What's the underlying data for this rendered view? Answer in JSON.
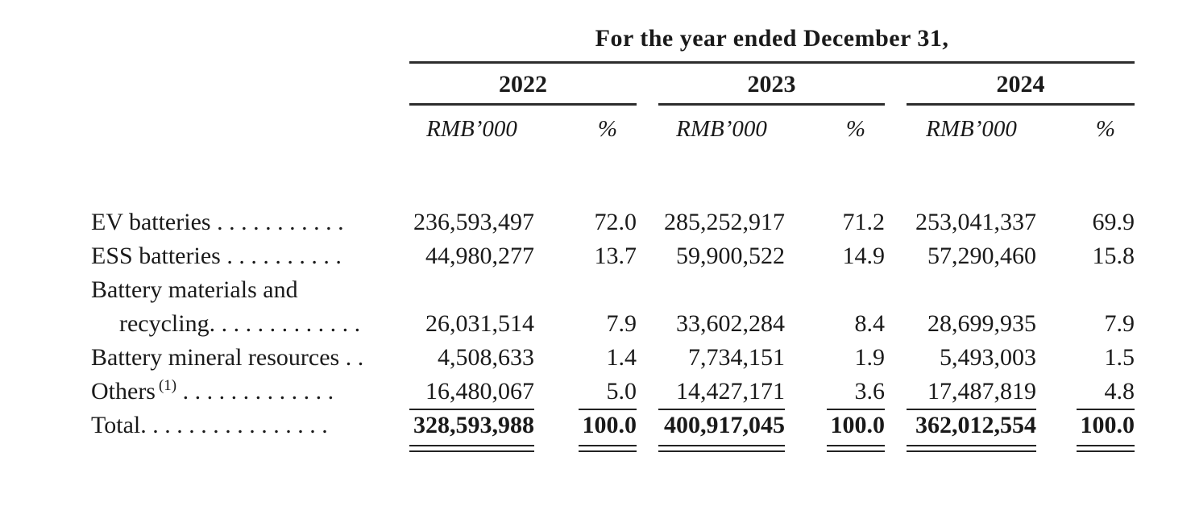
{
  "table": {
    "title": "For the year ended December 31,",
    "year_groups": [
      {
        "year": "2022",
        "unit": "RMB’000",
        "pct": "%"
      },
      {
        "year": "2023",
        "unit": "RMB’000",
        "pct": "%"
      },
      {
        "year": "2024",
        "unit": "RMB’000",
        "pct": "%"
      }
    ],
    "rows": [
      {
        "label": "EV batteries",
        "leader": " . . . . . . . . . . .",
        "values": [
          "236,593,497",
          "72.0",
          "285,252,917",
          "71.2",
          "253,041,337",
          "69.9"
        ]
      },
      {
        "label": "ESS batteries",
        "leader": " . . . . . . . . . .",
        "values": [
          "44,980,277",
          "13.7",
          "59,900,522",
          "14.9",
          "57,290,460",
          "15.8"
        ]
      },
      {
        "label": "Battery materials and",
        "leader": ""
      },
      {
        "label": "recycling",
        "leader": ". . . . . . . . . . . . .",
        "values": [
          "26,031,514",
          "7.9",
          "33,602,284",
          "8.4",
          "28,699,935",
          "7.9"
        ]
      },
      {
        "label": "Battery mineral resources",
        "leader": " . .",
        "values": [
          "4,508,633",
          "1.4",
          "7,734,151",
          "1.9",
          "5,493,003",
          "1.5"
        ]
      },
      {
        "label": "Others",
        "superscript": "(1)",
        "leader": " . . . . . . . . . . . . .",
        "values": [
          "16,480,067",
          "5.0",
          "14,427,171",
          "3.6",
          "17,487,819",
          "4.8"
        ]
      }
    ],
    "total": {
      "label": "Total",
      "leader": ". . . . . . . . . . . . . . . .",
      "values": [
        "328,593,988",
        "100.0",
        "400,917,045",
        "100.0",
        "362,012,554",
        "100.0"
      ]
    }
  }
}
